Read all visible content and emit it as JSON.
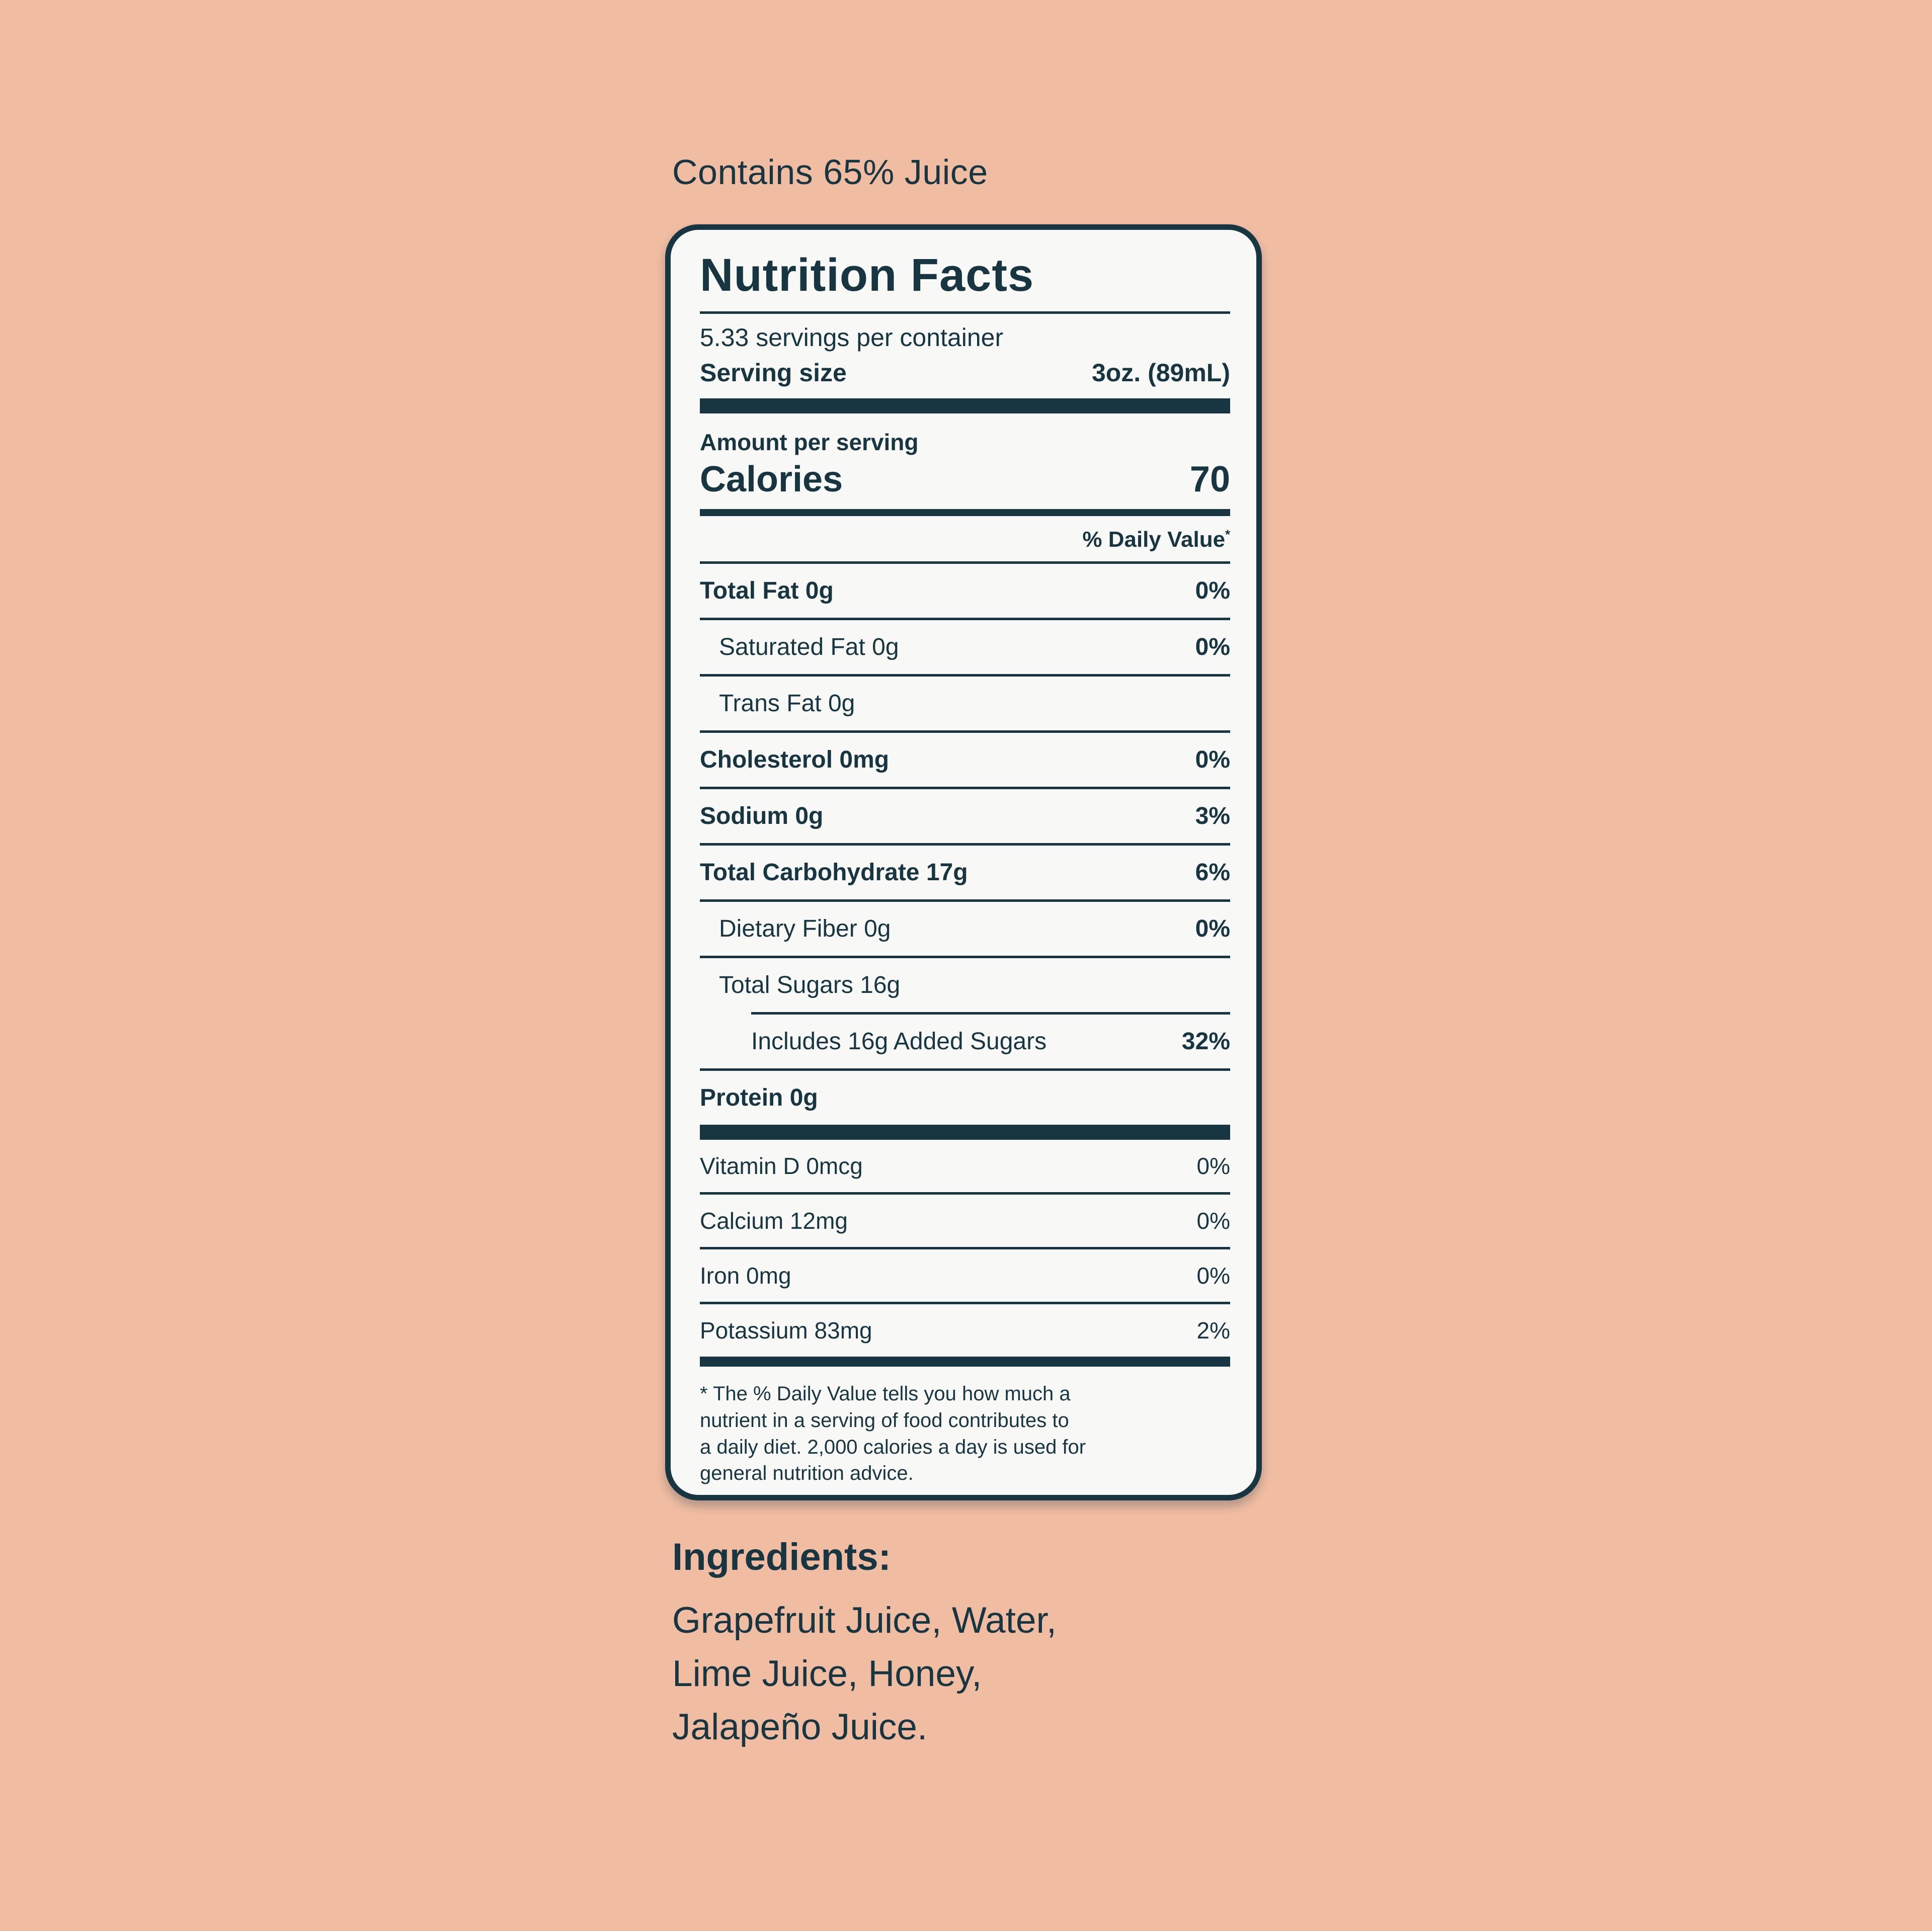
{
  "page": {
    "background_color": "#f0bca2",
    "text_color": "#183641",
    "label_background": "#f8f9f6"
  },
  "contains_line": "Contains 65% Juice",
  "nutrition_label": {
    "title": "Nutrition Facts",
    "servings_per_container": "5.33 servings per container",
    "serving_size_label": "Serving size",
    "serving_size_value": "3oz. (89mL)",
    "amount_per_serving": "Amount per serving",
    "calories_label": "Calories",
    "calories_value": "70",
    "daily_value_header": "% Daily Value",
    "daily_value_asterisk": "*",
    "rows": [
      {
        "label": "Total Fat 0g",
        "value": "0%"
      },
      {
        "label": "Saturated Fat 0g",
        "value": "0%"
      },
      {
        "label": "Trans Fat 0g",
        "value": ""
      },
      {
        "label": "Cholesterol 0mg",
        "value": "0%"
      },
      {
        "label": "Sodium 0g",
        "value": "3%"
      },
      {
        "label": "Total Carbohydrate 17g",
        "value": "6%"
      },
      {
        "label": "Dietary Fiber 0g",
        "value": "0%"
      },
      {
        "label": "Total Sugars 16g",
        "value": ""
      },
      {
        "label": "Includes 16g Added Sugars",
        "value": "32%"
      },
      {
        "label": "Protein 0g",
        "value": ""
      }
    ],
    "micronutrients": [
      {
        "label": "Vitamin D 0mcg",
        "value": "0%"
      },
      {
        "label": "Calcium 12mg",
        "value": "0%"
      },
      {
        "label": "Iron 0mg",
        "value": "0%"
      },
      {
        "label": "Potassium 83mg",
        "value": "2%"
      }
    ],
    "footnote": "* The % Daily Value tells you how much a\nnutrient in a serving of food contributes to\na daily diet. 2,000 calories a day is used for\ngeneral nutrition advice."
  },
  "ingredients": {
    "heading": "Ingredients:",
    "lines": [
      "Grapefruit Juice, Water,",
      "Lime Juice, Honey,",
      "Jalapeño Juice."
    ]
  }
}
